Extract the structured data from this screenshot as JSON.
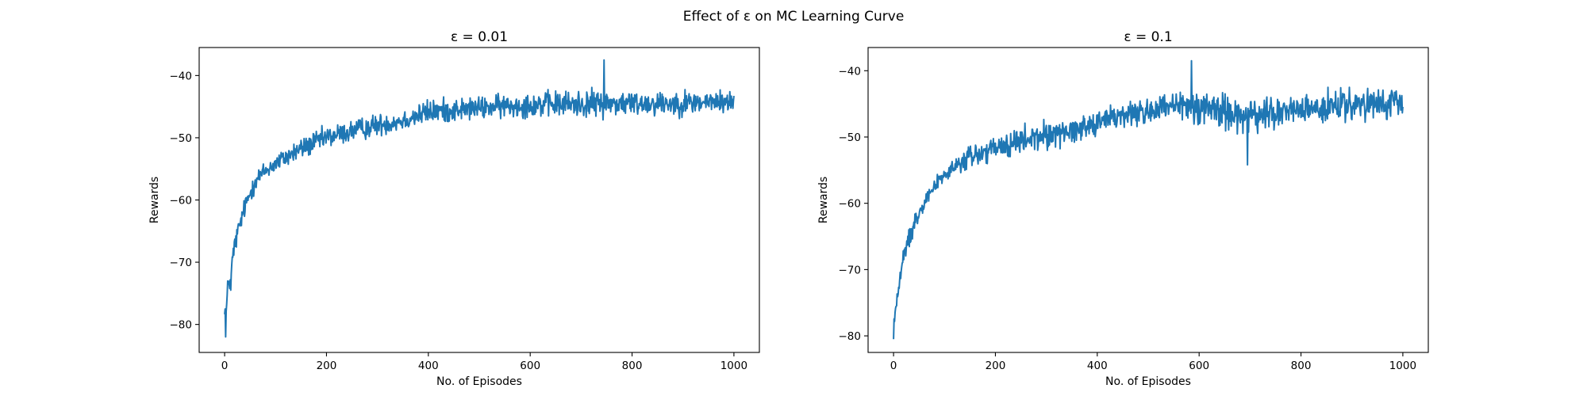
{
  "suptitle": "Effect of ε on MC Learning Curve",
  "line_color": "#1f77b4",
  "chart_data": [
    {
      "type": "line",
      "title": "ε = 0.01",
      "xlabel": "No. of Episodes",
      "ylabel": "Rewards",
      "xlim": [
        -50,
        1050
      ],
      "ylim": [
        -84.5,
        -35.5
      ],
      "xticks": [
        0,
        200,
        400,
        600,
        800,
        1000
      ],
      "xtick_labels": [
        "0",
        "200",
        "400",
        "600",
        "800",
        "1000"
      ],
      "yticks": [
        -80,
        -70,
        -60,
        -50,
        -40
      ],
      "ytick_labels": [
        "−80",
        "−70",
        "−60",
        "−50",
        "−40"
      ],
      "grid": false,
      "series": [
        {
          "color": "#1f77b4",
          "x": [
            0,
            2,
            4,
            6,
            8,
            10,
            12,
            15,
            18,
            20,
            25,
            30,
            35,
            40,
            50,
            60,
            70,
            80,
            90,
            100,
            120,
            140,
            160,
            180,
            200,
            225,
            250,
            275,
            300,
            325,
            350,
            375,
            400,
            425,
            450,
            475,
            500,
            525,
            550,
            575,
            600,
            625,
            650,
            675,
            700,
            725,
            750,
            775,
            800,
            825,
            850,
            875,
            900,
            925,
            950,
            975,
            1000
          ],
          "y": [
            -74.5,
            -82,
            -79,
            -73,
            -70,
            -72,
            -76,
            -67,
            -65,
            -64,
            -62,
            -60.5,
            -59.5,
            -58.5,
            -57.5,
            -56.5,
            -55.8,
            -55,
            -54.2,
            -53.5,
            -52.5,
            -51.7,
            -51,
            -50.4,
            -49.9,
            -49.3,
            -48.8,
            -48.3,
            -47.9,
            -47.5,
            -47.1,
            -46.8,
            -46.5,
            -46.2,
            -46,
            -45.8,
            -45.6,
            -45.4,
            -45.2,
            -45.1,
            -45,
            -44.9,
            -44.8,
            -44.7,
            -44.6,
            -44.5,
            -44.5,
            -44.4,
            -44.4,
            -44.3,
            -44.3,
            -44.2,
            -44.2,
            -44.2,
            -44.1,
            -44.1,
            -44.1
          ],
          "noise_envelope": {
            "x": [
              0,
              20,
              40,
              60,
              80,
              100,
              150,
              200,
              250,
              300,
              350,
              400,
              450,
              500,
              600,
              700,
              800,
              900,
              1000
            ],
            "min": [
              -82,
              -73,
              -66,
              -61,
              -59,
              -58,
              -56,
              -54,
              -53,
              -52,
              -51,
              -50,
              -49.5,
              -49,
              -49,
              -49.5,
              -49,
              -49,
              -48
            ],
            "max": [
              -74,
              -65,
              -59,
              -53,
              -52,
              -51,
              -48,
              -46,
              -45,
              -44,
              -43.5,
              -41,
              -41,
              -41,
              -40,
              -39.5,
              -40,
              -40,
              -40.5
            ]
          },
          "annotated_extremes": [
            {
              "x": 2,
              "y": -82
            },
            {
              "x": 745,
              "y": -37.5
            }
          ]
        }
      ]
    },
    {
      "type": "line",
      "title": "ε = 0.1",
      "xlabel": "No. of Episodes",
      "ylabel": "Rewards",
      "xlim": [
        -50,
        1050
      ],
      "ylim": [
        -82.5,
        -36.5
      ],
      "xticks": [
        0,
        200,
        400,
        600,
        800,
        1000
      ],
      "xtick_labels": [
        "0",
        "200",
        "400",
        "600",
        "800",
        "1000"
      ],
      "yticks": [
        -80,
        -70,
        -60,
        -50,
        -40
      ],
      "ytick_labels": [
        "−80",
        "−70",
        "−60",
        "−50",
        "−40"
      ],
      "grid": false,
      "series": [
        {
          "color": "#1f77b4",
          "x": [
            0,
            2,
            4,
            6,
            8,
            10,
            12,
            15,
            18,
            20,
            25,
            30,
            35,
            40,
            50,
            60,
            70,
            80,
            90,
            100,
            120,
            140,
            160,
            180,
            200,
            225,
            250,
            275,
            300,
            325,
            350,
            375,
            400,
            425,
            450,
            475,
            500,
            525,
            550,
            575,
            600,
            625,
            650,
            675,
            700,
            725,
            750,
            775,
            800,
            825,
            850,
            875,
            900,
            925,
            950,
            975,
            1000
          ],
          "y": [
            -80.5,
            -77,
            -75,
            -73.5,
            -72.5,
            -71.5,
            -70.5,
            -68.5,
            -67,
            -66,
            -64.3,
            -63,
            -61.8,
            -60.8,
            -59.3,
            -58,
            -57,
            -56,
            -55.2,
            -54.5,
            -53.4,
            -52.5,
            -51.8,
            -51.2,
            -50.7,
            -50.1,
            -49.6,
            -49.2,
            -48.8,
            -48.4,
            -48.1,
            -47.8,
            -47.5,
            -47.3,
            -47.1,
            -46.9,
            -46.7,
            -46.5,
            -46.4,
            -46.3,
            -46.2,
            -46.1,
            -46,
            -45.9,
            -45.8,
            -45.7,
            -45.7,
            -45.6,
            -45.6,
            -45.5,
            -45.5,
            -45.4,
            -45.4,
            -45.3,
            -45.3,
            -45.3,
            -44.5
          ],
          "noise_envelope": {
            "x": [
              0,
              20,
              40,
              60,
              80,
              100,
              150,
              200,
              250,
              300,
              350,
              400,
              450,
              500,
              600,
              700,
              800,
              900,
              1000
            ],
            "min": [
              -80.5,
              -72,
              -68,
              -63,
              -60,
              -59,
              -58,
              -57,
              -56,
              -55,
              -54,
              -52,
              -51,
              -50.5,
              -51,
              -54,
              -51,
              -50.5,
              -49.5
            ],
            "max": [
              -76,
              -66,
              -61,
              -58,
              -56,
              -54,
              -49,
              -48,
              -46.5,
              -45.5,
              -45,
              -43.5,
              -42,
              -41,
              -38.5,
              -41,
              -41,
              -40,
              -40.5
            ]
          },
          "annotated_extremes": [
            {
              "x": 0,
              "y": -80.5
            },
            {
              "x": 585,
              "y": -38.5
            },
            {
              "x": 695,
              "y": -54.2
            }
          ]
        }
      ]
    }
  ]
}
